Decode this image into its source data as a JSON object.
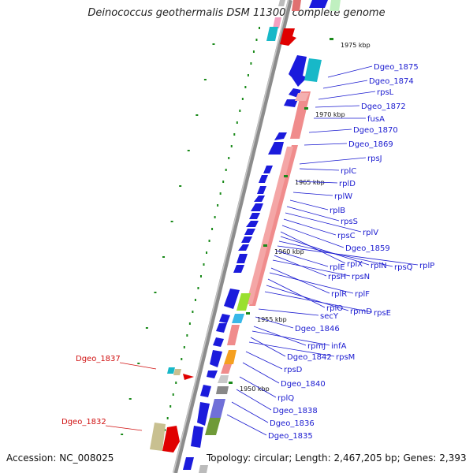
{
  "title": "Deinococcus geothermalis DSM 11300, complete genome",
  "accession": "Accession: NC_008025",
  "topology": "Topology: circular; Length: 2,467,205 bp; Genes: 2,393",
  "colors": {
    "backbone": "#8c8c8c",
    "cds_forward": "#1b1bdc",
    "cds_reverse": "#0b0bd6",
    "ribosomal": "#f08c8c",
    "highlight_red": "#e00000",
    "tick": "#1a8a1a",
    "label_blue": "#1a1ad0",
    "label_red": "#d01010"
  },
  "kbp_ticks": [
    "1975 kbp",
    "1970 kbp",
    "1965 kbp",
    "1960 kbp",
    "1955 kbp",
    "1950 kbp"
  ],
  "gene_labels": [
    "Dgeo_1875",
    "Dgeo_1874",
    "rpsL",
    "Dgeo_1872",
    "fusA",
    "Dgeo_1870",
    "Dgeo_1869",
    "rpsJ",
    "rplC",
    "rplD",
    "rplW",
    "rplB",
    "rpsS",
    "rplV",
    "rpsC",
    "Dgeo_1859",
    "rplX",
    "rplN",
    "rpsQ",
    "rplP",
    "rplE",
    "rpsH",
    "rpsN",
    "rplR",
    "rplF",
    "rplO",
    "rpmD",
    "rpsE",
    "secY",
    "Dgeo_1846",
    "rpmJ",
    "infA",
    "Dgeo_1842",
    "rpsM",
    "rpsD",
    "Dgeo_1840",
    "rplQ",
    "Dgeo_1838",
    "Dgeo_1836",
    "Dgeo_1835"
  ],
  "left_labels": [
    "Dgeo_1837",
    "Dgeo_1832"
  ]
}
